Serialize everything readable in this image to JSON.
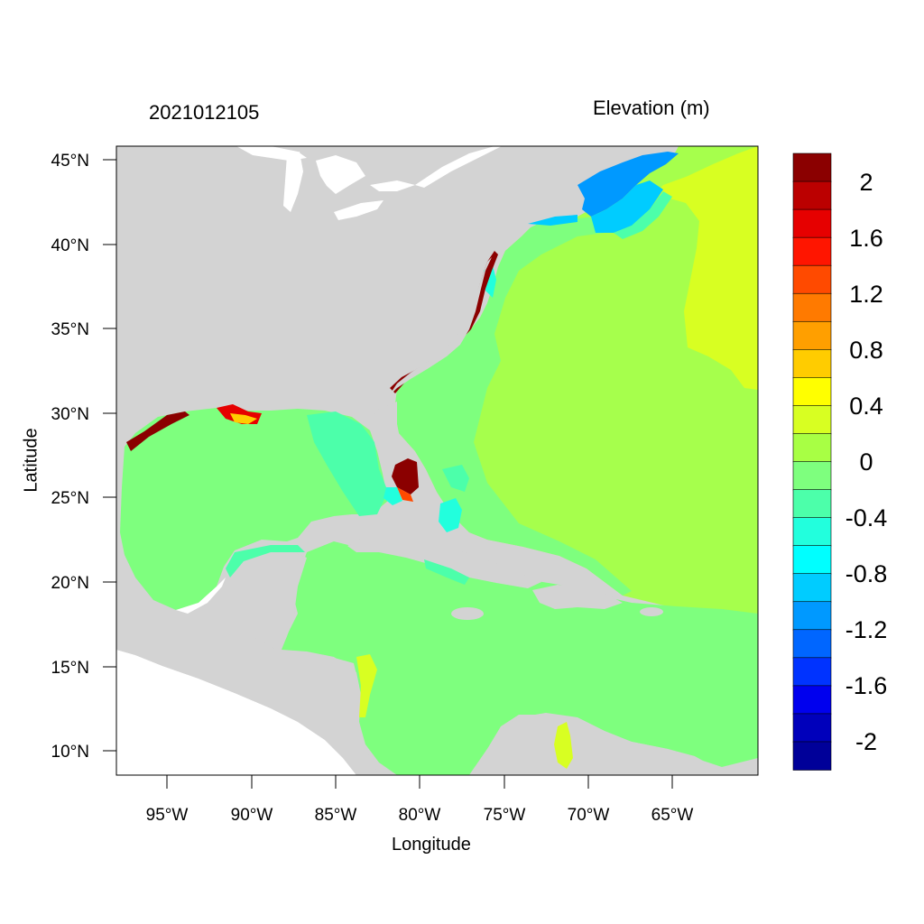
{
  "map": {
    "date_label": "2021012105",
    "variable_label": "Elevation (m)",
    "xlabel": "Longitude",
    "ylabel": "Latitude",
    "lon_ticks": [
      "95°W",
      "90°W",
      "85°W",
      "80°W",
      "75°W",
      "70°W",
      "65°W"
    ],
    "lat_ticks": [
      "45°N",
      "40°N",
      "35°N",
      "30°N",
      "25°N",
      "20°N",
      "15°N",
      "10°N"
    ],
    "land_color": "#d3d3d3",
    "lakes_color": "#ffffff"
  },
  "colorbar": {
    "labels": [
      "2",
      "1.6",
      "1.2",
      "0.8",
      "0.4",
      "0",
      "-0.4",
      "-0.8",
      "-1.2",
      "-1.6",
      "-2"
    ],
    "colors": [
      "#8b0000",
      "#bb0000",
      "#e60000",
      "#ff1500",
      "#ff4a00",
      "#ff7a00",
      "#ff9f00",
      "#ffcc00",
      "#ffff00",
      "#d8ff22",
      "#a8ff44",
      "#7eff7e",
      "#4cffaa",
      "#22ffdd",
      "#00ffff",
      "#00ccff",
      "#0099ff",
      "#0066ff",
      "#0033ff",
      "#0000ee",
      "#0000bb",
      "#000099"
    ]
  }
}
